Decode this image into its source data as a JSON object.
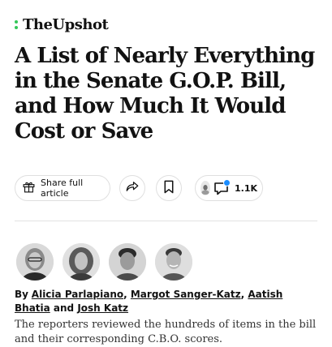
{
  "brand": {
    "name": "TheUpshot",
    "accent_color": "#34c759"
  },
  "headline": "A List of Nearly Everything in the Senate G.O.P. Bill, and How Much It Would Cost or Save",
  "actions": {
    "share_label": "Share full article",
    "share_icon": "gift-icon",
    "forward_icon": "share-arrow-icon",
    "save_icon": "bookmark-icon",
    "comments_icon": "comment-bubble-icon",
    "comments_count": "1.1K",
    "notification_color": "#1a8cff"
  },
  "byline": {
    "prefix": "By",
    "authors": [
      "Alicia Parlapiano",
      "Margot Sanger-Katz",
      "Aatish Bhatia",
      "Josh Katz"
    ],
    "separators": [
      ", ",
      ", ",
      " and "
    ]
  },
  "summary": "The reporters reviewed the hundreds of items in the bill and their corresponding C.B.O. scores."
}
